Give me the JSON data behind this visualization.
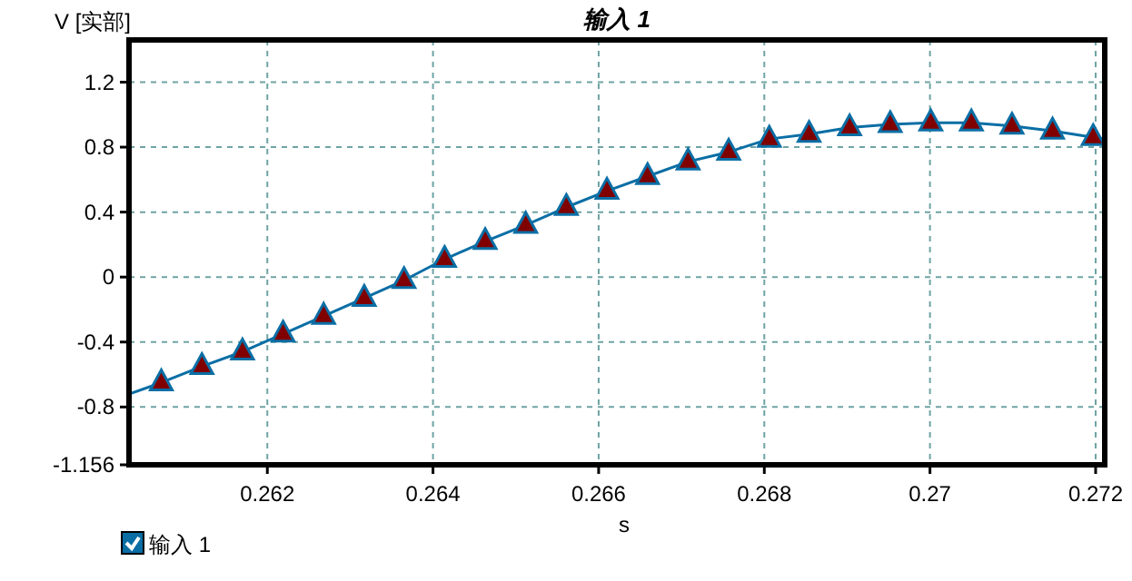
{
  "chart_data": {
    "type": "line",
    "title": "输入 1",
    "xlabel": "s",
    "ylabel": "V [实部]",
    "xlim": [
      0.26033,
      0.27211
    ],
    "ylim": [
      -1.156,
      1.46
    ],
    "xticks": [
      0.262,
      0.264,
      0.266,
      0.268,
      0.27,
      0.272
    ],
    "yticks": [
      1.2,
      0.8,
      0.4,
      0,
      -0.4,
      -0.8,
      -1.156
    ],
    "grid": true,
    "legend": "bottom left",
    "series": [
      {
        "name": "输入 1",
        "color": "#0a6ea5",
        "line_style": "solid",
        "marker": "none",
        "x": [
          0.26033,
          0.26072,
          0.26121,
          0.2617,
          0.26219,
          0.26268,
          0.26317,
          0.26365,
          0.26414,
          0.26463,
          0.26512,
          0.26561,
          0.2661,
          0.26659,
          0.26708,
          0.26757,
          0.26806,
          0.26854,
          0.26903,
          0.26952,
          0.27001,
          0.2705,
          0.27099,
          0.27148,
          0.27197,
          0.27211
        ],
        "values": [
          -0.72,
          -0.65,
          -0.55,
          -0.46,
          -0.35,
          -0.24,
          -0.13,
          -0.02,
          0.11,
          0.22,
          0.32,
          0.43,
          0.53,
          0.62,
          0.71,
          0.77,
          0.85,
          0.88,
          0.92,
          0.94,
          0.95,
          0.95,
          0.93,
          0.9,
          0.86,
          0.85
        ]
      },
      {
        "type": "scatter",
        "color": "#800000",
        "marker": "triangle",
        "x": [
          0.26072,
          0.26121,
          0.2617,
          0.26219,
          0.26268,
          0.26317,
          0.26365,
          0.26414,
          0.26463,
          0.26512,
          0.26561,
          0.2661,
          0.26659,
          0.26708,
          0.26757,
          0.26806,
          0.26854,
          0.26903,
          0.26952,
          0.27001,
          0.2705,
          0.27099,
          0.27148,
          0.27197
        ],
        "values": [
          -0.65,
          -0.55,
          -0.46,
          -0.35,
          -0.24,
          -0.13,
          -0.02,
          0.11,
          0.22,
          0.32,
          0.43,
          0.53,
          0.62,
          0.71,
          0.77,
          0.85,
          0.88,
          0.92,
          0.94,
          0.95,
          0.95,
          0.93,
          0.9,
          0.86
        ]
      }
    ]
  }
}
